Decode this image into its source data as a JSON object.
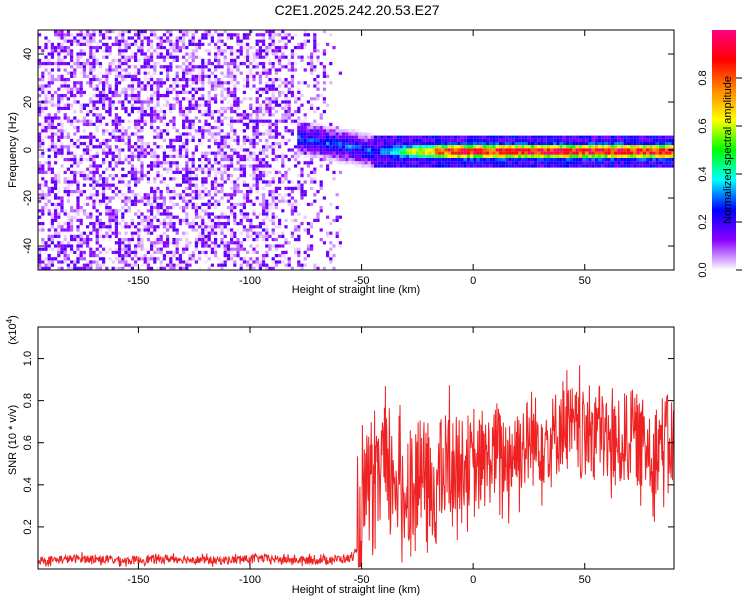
{
  "title": "C2E1.2025.242.20.53.E27",
  "chart_data": [
    {
      "type": "heatmap",
      "xlabel": "Height of straight line (km)",
      "ylabel": "Frequency (Hz)",
      "xlim": [
        -195,
        90
      ],
      "ylim": [
        -50,
        50
      ],
      "xticks": [
        -150,
        -100,
        -50,
        0,
        50
      ],
      "yticks": [
        -40,
        -20,
        0,
        20,
        40
      ],
      "colorbar": {
        "label": "Normalized spectral amplitude",
        "range": [
          0,
          1
        ],
        "ticks": [
          0.0,
          0.2,
          0.4,
          0.6,
          0.8
        ],
        "tick_labels": [
          "0.0",
          "0.2",
          "0.4",
          "0.6",
          "0.8"
        ],
        "colormap": [
          "#ffffff",
          "#8a00ff",
          "#0000ff",
          "#00ffff",
          "#00ff00",
          "#ffff00",
          "#ff8800",
          "#ff0000",
          "#ff0080"
        ]
      },
      "features": [
        {
          "region": "noise",
          "x": [
            -195,
            -60
          ],
          "freq": [
            -50,
            50
          ],
          "amplitude": 0.05
        },
        {
          "region": "onset",
          "x": [
            -80,
            -45
          ],
          "freq_center": 6,
          "freq_width": 8,
          "amplitude": 0.3
        },
        {
          "region": "carrier",
          "x": [
            -45,
            90
          ],
          "freq_center": 0,
          "freq_width": 3,
          "amplitude": 0.95
        }
      ]
    },
    {
      "type": "line",
      "xlabel": "Height of straight line (km)",
      "ylabel": "SNR (10 * v/v)",
      "y_multiplier": "(x10",
      "y_multiplier_exp": "4",
      "y_multiplier_close": ")",
      "xlim": [
        -195,
        90
      ],
      "ylim": [
        0,
        1.15
      ],
      "xticks": [
        -150,
        -100,
        -50,
        0,
        50
      ],
      "yticks": [
        0.2,
        0.4,
        0.6,
        0.8,
        1.0
      ],
      "ytick_labels": [
        "0.2",
        "0.4",
        "0.6",
        "0.8",
        "1.0"
      ],
      "color": "#ee2222",
      "series": [
        {
          "x": [
            -195,
            -175,
            -155,
            -135,
            -115,
            -95,
            -75,
            -55,
            -52,
            -50,
            -47,
            -44,
            -41,
            -38,
            -35,
            -32,
            -29,
            -26,
            -23,
            -20,
            -17,
            -14,
            -11,
            -8,
            -5,
            -2,
            0,
            5,
            10,
            15,
            20,
            25,
            30,
            35,
            40,
            45,
            50,
            55,
            60,
            65,
            70,
            75,
            80,
            85,
            90
          ],
          "values": [
            0.04,
            0.05,
            0.04,
            0.05,
            0.04,
            0.05,
            0.04,
            0.05,
            0.08,
            0.25,
            0.4,
            0.3,
            0.55,
            0.35,
            0.48,
            0.3,
            0.42,
            0.35,
            0.5,
            0.3,
            0.38,
            0.45,
            0.5,
            0.48,
            0.5,
            0.52,
            0.45,
            0.5,
            0.55,
            0.52,
            0.58,
            0.6,
            0.62,
            0.6,
            0.7,
            0.65,
            0.62,
            0.7,
            0.6,
            0.58,
            0.65,
            0.6,
            0.55,
            0.62,
            0.6
          ]
        }
      ]
    }
  ]
}
